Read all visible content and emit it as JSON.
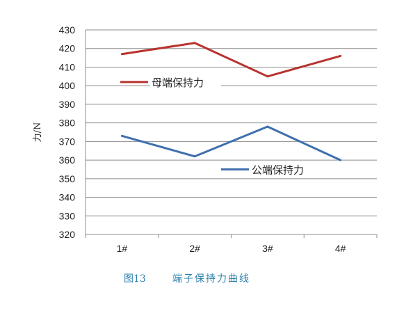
{
  "chart_data": {
    "type": "line",
    "title": "",
    "xlabel": "",
    "ylabel": "力/N",
    "categories": [
      "1#",
      "2#",
      "3#",
      "4#"
    ],
    "ylim": [
      320,
      430
    ],
    "yticks": [
      320,
      330,
      340,
      350,
      360,
      370,
      380,
      390,
      400,
      410,
      420,
      430
    ],
    "grid": true,
    "legend": "inline labels",
    "series": [
      {
        "name": "母端保持力",
        "values": [
          417,
          423,
          405,
          416
        ],
        "color": "#b8332f"
      },
      {
        "name": "公端保持力",
        "values": [
          373,
          362,
          378,
          360
        ],
        "color": "#3f6fae"
      }
    ]
  },
  "caption": {
    "figure_label": "图13",
    "text": "端子保持力曲线"
  }
}
